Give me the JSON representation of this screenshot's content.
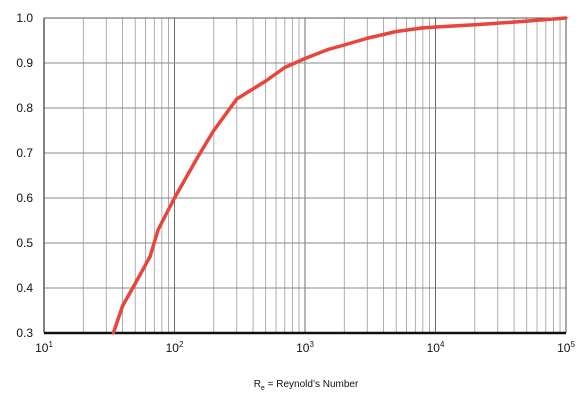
{
  "chart_data": {
    "type": "line",
    "title": "",
    "xlabel": {
      "main": "R",
      "subscript": "e",
      "rest": " = Reynold’s Number"
    },
    "ylabel": "",
    "x_scale": "log",
    "xlim": [
      10,
      100000
    ],
    "ylim": [
      0.3,
      1.0
    ],
    "grid": true,
    "x_ticks": [
      {
        "value": 10,
        "base": "10",
        "exp": "1"
      },
      {
        "value": 100,
        "base": "10",
        "exp": "2"
      },
      {
        "value": 1000,
        "base": "10",
        "exp": "3"
      },
      {
        "value": 10000,
        "base": "10",
        "exp": "4"
      },
      {
        "value": 100000,
        "base": "10",
        "exp": "5"
      }
    ],
    "y_ticks": [
      {
        "value": 1.0,
        "label": "1.0"
      },
      {
        "value": 0.9,
        "label": "0.9"
      },
      {
        "value": 0.8,
        "label": "0.8"
      },
      {
        "value": 0.7,
        "label": "0.7"
      },
      {
        "value": 0.6,
        "label": "0.6"
      },
      {
        "value": 0.5,
        "label": "0.5"
      },
      {
        "value": 0.4,
        "label": "0.4"
      },
      {
        "value": 0.3,
        "label": "0.3"
      }
    ],
    "series": [
      {
        "color": "#e8453c",
        "points": [
          [
            34,
            0.3
          ],
          [
            40,
            0.36
          ],
          [
            50,
            0.41
          ],
          [
            65,
            0.47
          ],
          [
            75,
            0.53
          ],
          [
            100,
            0.6
          ],
          [
            150,
            0.69
          ],
          [
            200,
            0.75
          ],
          [
            300,
            0.82
          ],
          [
            500,
            0.86
          ],
          [
            700,
            0.89
          ],
          [
            1000,
            0.91
          ],
          [
            1500,
            0.93
          ],
          [
            2000,
            0.94
          ],
          [
            3000,
            0.955
          ],
          [
            5000,
            0.97
          ],
          [
            8000,
            0.978
          ],
          [
            10000,
            0.98
          ],
          [
            20000,
            0.985
          ],
          [
            50000,
            0.993
          ],
          [
            100000,
            1.0
          ]
        ]
      }
    ]
  }
}
